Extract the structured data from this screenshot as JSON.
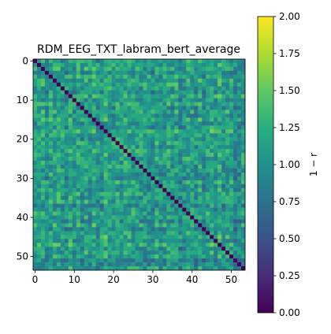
{
  "chart_data": {
    "type": "heatmap",
    "title": "RDM_EEG_TXT_labram_bert_average",
    "size": 54,
    "x_ticks": [
      0,
      10,
      20,
      30,
      40,
      50
    ],
    "y_ticks": [
      0,
      10,
      20,
      30,
      40,
      50
    ],
    "diagonal_value": 0.0,
    "off_diagonal_range": [
      0.5,
      1.65
    ],
    "colorbar": {
      "label": "1 − r",
      "range": [
        0,
        2
      ],
      "ticks": [
        "0.00",
        "0.25",
        "0.50",
        "0.75",
        "1.00",
        "1.25",
        "1.50",
        "1.75",
        "2.00"
      ],
      "colormap": "viridis"
    }
  }
}
